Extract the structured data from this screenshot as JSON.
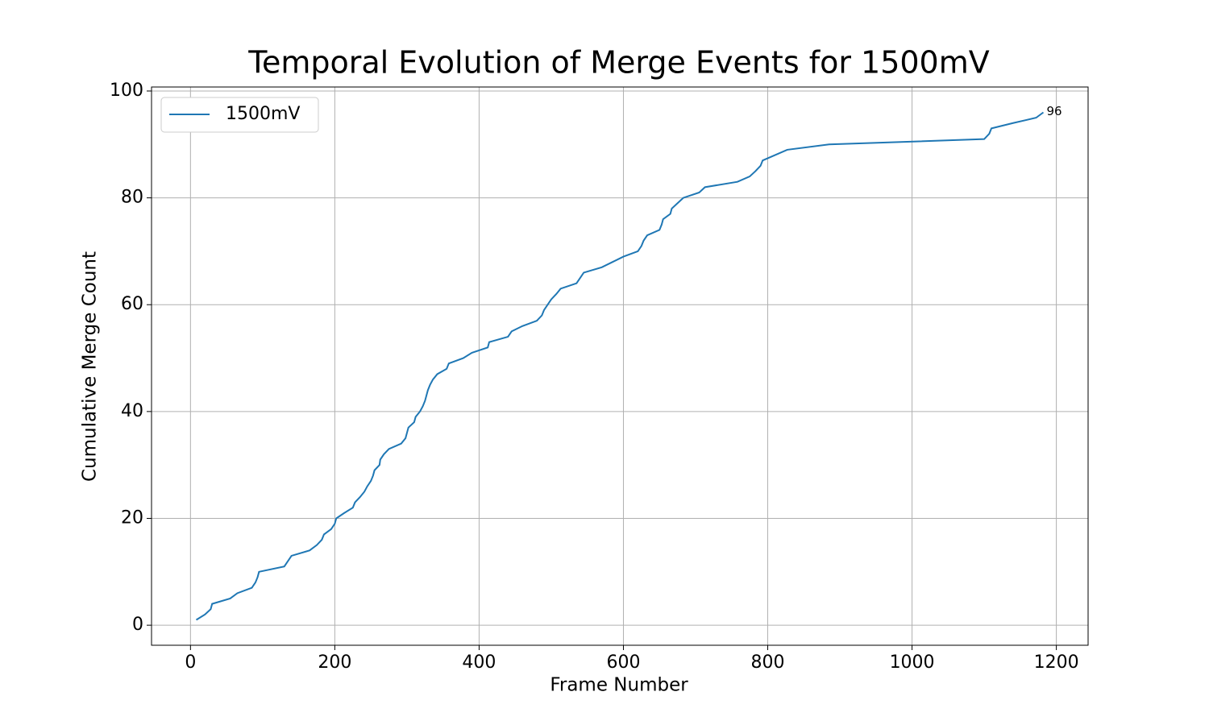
{
  "chart_data": {
    "type": "line",
    "title": "Temporal Evolution of Merge Events for 1500mV",
    "x_label": "Frame Number",
    "y_label": "Cumulative Merge Count",
    "annotation": "96",
    "legend": "upper left",
    "grid": true,
    "xlim": [
      -54,
      1244
    ],
    "ylim": [
      -3.75,
      100.75
    ],
    "xticks": [
      0,
      200,
      400,
      600,
      800,
      1000,
      1200
    ],
    "yticks": [
      0,
      20,
      40,
      60,
      80,
      100
    ],
    "series": [
      {
        "name": "1500mV",
        "color": "#1f77b4",
        "x": [
          8,
          20,
          28,
          30,
          55,
          65,
          85,
          90,
          93,
          95,
          130,
          135,
          140,
          165,
          175,
          182,
          185,
          195,
          200,
          202,
          213,
          225,
          228,
          235,
          241,
          245,
          250,
          253,
          255,
          262,
          263,
          268,
          275,
          292,
          298,
          300,
          302,
          310,
          312,
          318,
          322,
          325,
          327,
          329,
          332,
          336,
          342,
          355,
          358,
          378,
          390,
          412,
          414,
          440,
          445,
          460,
          480,
          487,
          490,
          495,
          500,
          507,
          513,
          535,
          540,
          545,
          570,
          585,
          600,
          620,
          625,
          628,
          633,
          650,
          653,
          655,
          665,
          667,
          675,
          683,
          705,
          713,
          758,
          775,
          783,
          790,
          793,
          810,
          827,
          885,
          1100,
          1107,
          1110,
          1140,
          1172,
          1182
        ],
        "values": [
          1,
          2,
          3,
          4,
          5,
          6,
          7,
          8,
          9,
          10,
          11,
          12,
          13,
          14,
          15,
          16,
          17,
          18,
          19,
          20,
          21,
          22,
          23,
          24,
          25,
          26,
          27,
          28,
          29,
          30,
          31,
          32,
          33,
          34,
          35,
          36,
          37,
          38,
          39,
          40,
          41,
          42,
          43,
          44,
          45,
          46,
          47,
          48,
          49,
          50,
          51,
          52,
          53,
          54,
          55,
          56,
          57,
          58,
          59,
          60,
          61,
          62,
          63,
          64,
          65,
          66,
          67,
          68,
          69,
          70,
          71,
          72,
          73,
          74,
          75,
          76,
          77,
          78,
          79,
          80,
          81,
          82,
          83,
          84,
          85,
          86,
          87,
          88,
          89,
          90,
          91,
          92,
          93,
          94,
          95,
          96
        ]
      }
    ]
  }
}
